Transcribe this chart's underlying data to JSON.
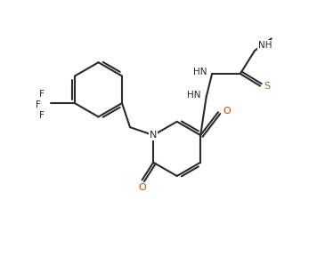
{
  "background": "#ffffff",
  "line_color": "#2a2a2a",
  "N_color": "#2a2a2a",
  "O_color": "#cc4400",
  "S_color": "#996633",
  "line_width": 1.5,
  "figsize": [
    3.65,
    2.88
  ],
  "dpi": 100,
  "xlim": [
    0,
    10
  ],
  "ylim": [
    0,
    8
  ]
}
